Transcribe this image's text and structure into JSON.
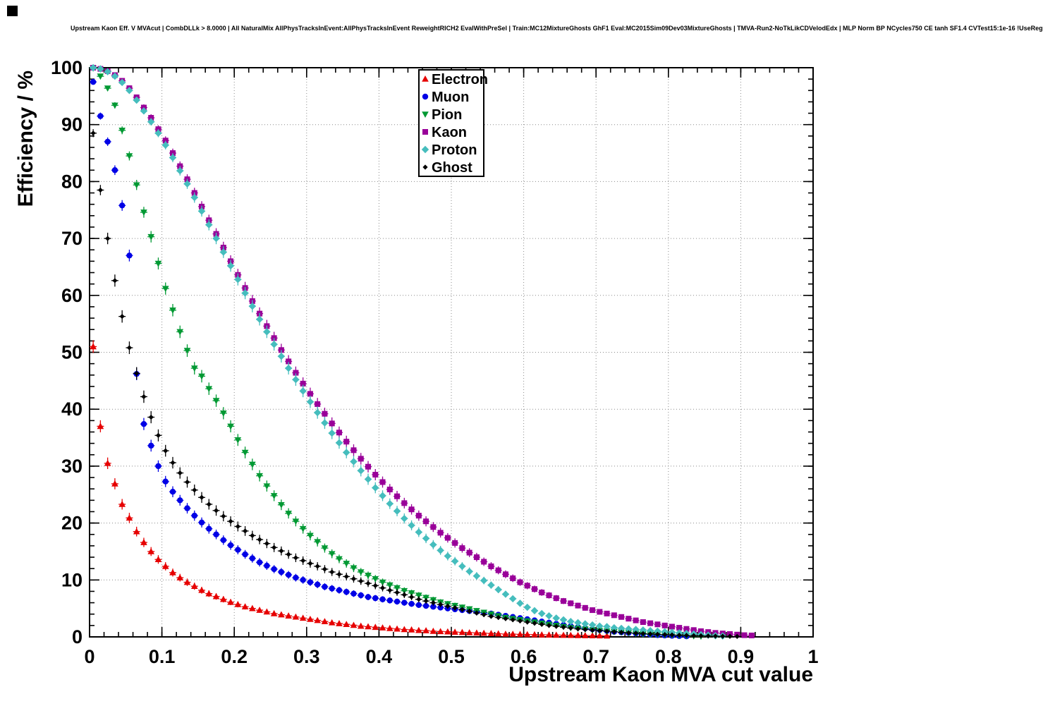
{
  "chart_data": {
    "type": "scatter",
    "title": "Upstream Kaon Eff. V MVAcut | CombDLLk > 8.0000 | All NaturalMix AllPhysTracksInEvent:AllPhysTracksInEvent ReweightRICH2 EvalWithPreSel | Train:MC12MixtureGhosts GhF1 Eval:MC2015Sim09Dev03MixtureGhosts | TMVA-Run2-NoTkLikCDVelodEdx | MLP Norm BP NCycles750 CE tanh SF1.4 CVTest15:1e-16 !UseReg",
    "xlabel": "Upstream Kaon MVA cut value",
    "ylabel": "Efficiency / %",
    "xlim": [
      0,
      1
    ],
    "ylim": [
      0,
      100
    ],
    "x_ticks": [
      0,
      0.1,
      0.2,
      0.3,
      0.4,
      0.5,
      0.6,
      0.7,
      0.8,
      0.9,
      1
    ],
    "x_tick_labels": [
      "0",
      "0.1",
      "0.2",
      "0.3",
      "0.4",
      "0.5",
      "0.6",
      "0.7",
      "0.8",
      "0.9",
      "1"
    ],
    "y_ticks": [
      0,
      10,
      20,
      30,
      40,
      50,
      60,
      70,
      80,
      90,
      100
    ],
    "y_tick_labels": [
      "0",
      "10",
      "20",
      "30",
      "40",
      "50",
      "60",
      "70",
      "80",
      "90",
      "100"
    ],
    "x_minor_step": 0.02,
    "y_minor_step": 2,
    "grid": true,
    "grid_style": "dotted",
    "legend_position": "top-center",
    "series": [
      {
        "name": "Electron",
        "color": "#e60000",
        "marker": "triangle-up",
        "x_start": 0.005,
        "x_step": 0.01,
        "y": [
          51.0,
          37.0,
          30.5,
          26.9,
          23.3,
          20.9,
          18.5,
          16.6,
          15.0,
          13.6,
          12.4,
          11.3,
          10.4,
          9.6,
          8.9,
          8.2,
          7.6,
          7.1,
          6.6,
          6.1,
          5.7,
          5.3,
          5.0,
          4.7,
          4.4,
          4.1,
          3.9,
          3.7,
          3.5,
          3.3,
          3.1,
          2.9,
          2.7,
          2.5,
          2.35,
          2.2,
          2.05,
          1.9,
          1.8,
          1.7,
          1.6,
          1.5,
          1.4,
          1.3,
          1.25,
          1.15,
          1.1,
          1.0,
          0.95,
          0.9,
          0.85,
          0.8,
          0.75,
          0.7,
          0.65,
          0.6,
          0.55,
          0.5,
          0.48,
          0.45,
          0.42,
          0.4,
          0.37,
          0.35,
          0.32,
          0.3,
          0.28,
          0.26,
          0.24,
          0.22,
          0.2,
          0.18
        ]
      },
      {
        "name": "Muon",
        "color": "#0000e6",
        "marker": "circle",
        "x_start": 0.005,
        "x_step": 0.01,
        "y": [
          97.5,
          91.5,
          87.0,
          82.0,
          75.8,
          67.0,
          46.2,
          37.4,
          33.6,
          30.0,
          27.3,
          25.5,
          24.0,
          22.6,
          21.3,
          20.1,
          19.0,
          18.0,
          17.0,
          16.1,
          15.3,
          14.5,
          13.8,
          13.1,
          12.5,
          11.9,
          11.4,
          10.9,
          10.4,
          10.0,
          9.6,
          9.2,
          8.8,
          8.5,
          8.2,
          7.9,
          7.6,
          7.3,
          7.0,
          6.8,
          6.6,
          6.4,
          6.2,
          6.0,
          5.8,
          5.6,
          5.45,
          5.3,
          5.15,
          5.0,
          4.85,
          4.7,
          4.55,
          4.4,
          4.25,
          4.1,
          3.9,
          3.7,
          3.5,
          3.3,
          3.1,
          2.9,
          2.7,
          2.5,
          2.3,
          2.1,
          1.9,
          1.7,
          1.5,
          1.35,
          1.2,
          1.05,
          0.9,
          0.8,
          0.7,
          0.6,
          0.5,
          0.4,
          0.3,
          0.25,
          0.2,
          0.15,
          0.1
        ]
      },
      {
        "name": "Pion",
        "color": "#009933",
        "marker": "triangle-down",
        "x_start": 0.005,
        "x_step": 0.01,
        "y": [
          99.9,
          98.5,
          96.4,
          93.4,
          89.0,
          84.5,
          79.4,
          74.6,
          70.3,
          65.6,
          61.2,
          57.4,
          53.6,
          50.3,
          47.2,
          45.8,
          43.6,
          41.5,
          39.3,
          37.0,
          34.6,
          32.4,
          30.3,
          28.3,
          26.5,
          24.8,
          23.2,
          21.7,
          20.3,
          19.0,
          17.8,
          16.7,
          15.6,
          14.6,
          13.7,
          12.9,
          12.1,
          11.4,
          10.8,
          10.2,
          9.6,
          9.1,
          8.6,
          8.1,
          7.7,
          7.3,
          6.9,
          6.5,
          6.1,
          5.8,
          5.5,
          5.2,
          4.9,
          4.6,
          4.3,
          4.0,
          3.7,
          3.4,
          3.2,
          3.0,
          2.8,
          2.6,
          2.4,
          2.2,
          2.0,
          1.8,
          1.6,
          1.5,
          1.35,
          1.2,
          1.1,
          1.0,
          0.9,
          0.8,
          0.7,
          0.6,
          0.5,
          0.45,
          0.4,
          0.35,
          0.3,
          0.25,
          0.2,
          0.15,
          0.1
        ]
      },
      {
        "name": "Kaon",
        "color": "#990099",
        "marker": "square",
        "x_start": 0.005,
        "x_step": 0.01,
        "y": [
          100.0,
          99.8,
          99.4,
          98.7,
          97.7,
          96.4,
          94.8,
          93.0,
          91.2,
          89.2,
          87.2,
          85.0,
          82.7,
          80.4,
          78.0,
          75.6,
          73.2,
          70.8,
          68.4,
          66.0,
          63.6,
          61.3,
          59.0,
          56.8,
          54.6,
          52.5,
          50.4,
          48.4,
          46.4,
          44.5,
          42.7,
          40.9,
          39.2,
          37.5,
          35.9,
          34.3,
          32.8,
          31.3,
          29.9,
          28.5,
          27.2,
          25.9,
          24.7,
          23.5,
          22.4,
          21.3,
          20.3,
          19.3,
          18.3,
          17.4,
          16.5,
          15.6,
          14.8,
          14.0,
          13.2,
          12.4,
          11.7,
          11.0,
          10.3,
          9.6,
          9.0,
          8.4,
          7.8,
          7.3,
          6.8,
          6.3,
          5.9,
          5.5,
          5.1,
          4.7,
          4.4,
          4.1,
          3.8,
          3.5,
          3.2,
          2.9,
          2.6,
          2.4,
          2.2,
          2.0,
          1.8,
          1.6,
          1.4,
          1.2,
          1.0,
          0.85,
          0.7,
          0.6,
          0.5,
          0.4,
          0.3,
          0.25
        ]
      },
      {
        "name": "Proton",
        "color": "#45bdbd",
        "marker": "diamond",
        "x_start": 0.005,
        "x_step": 0.01,
        "y": [
          100.0,
          99.8,
          99.3,
          98.5,
          97.4,
          96.0,
          94.3,
          92.4,
          90.5,
          88.5,
          86.4,
          84.2,
          81.9,
          79.6,
          77.2,
          74.8,
          72.4,
          70.0,
          67.6,
          65.2,
          62.8,
          60.4,
          58.1,
          55.8,
          53.6,
          51.4,
          49.3,
          47.2,
          45.2,
          43.2,
          41.3,
          39.4,
          37.6,
          35.8,
          34.1,
          32.4,
          30.8,
          29.2,
          27.7,
          26.2,
          24.8,
          23.4,
          22.1,
          20.8,
          19.6,
          18.4,
          17.3,
          16.2,
          15.2,
          14.2,
          13.3,
          12.4,
          11.5,
          10.7,
          9.9,
          9.1,
          8.3,
          7.5,
          6.7,
          5.9,
          5.2,
          4.6,
          4.1,
          3.7,
          3.3,
          3.0,
          2.7,
          2.5,
          2.3,
          2.1,
          1.9,
          1.8,
          1.6,
          1.5,
          1.4,
          1.3,
          1.2,
          1.1,
          1.0,
          0.9,
          0.8,
          0.7,
          0.6,
          0.5,
          0.4,
          0.3,
          0.2,
          0.15
        ]
      },
      {
        "name": "Ghost",
        "color": "#000000",
        "marker": "diamond-small",
        "x_start": 0.005,
        "x_step": 0.01,
        "y": [
          88.5,
          78.5,
          70.0,
          62.6,
          56.3,
          50.8,
          46.3,
          42.2,
          38.6,
          35.4,
          32.7,
          30.6,
          28.8,
          27.2,
          25.8,
          24.5,
          23.3,
          22.2,
          21.2,
          20.3,
          19.4,
          18.6,
          17.8,
          17.1,
          16.4,
          15.7,
          15.1,
          14.5,
          13.9,
          13.4,
          12.9,
          12.4,
          11.9,
          11.4,
          11.0,
          10.6,
          10.2,
          9.8,
          9.4,
          9.0,
          8.6,
          8.2,
          7.8,
          7.4,
          7.0,
          6.6,
          6.3,
          6.0,
          5.7,
          5.4,
          5.1,
          4.8,
          4.5,
          4.2,
          3.9,
          3.6,
          3.4,
          3.2,
          3.0,
          2.8,
          2.6,
          2.4,
          2.2,
          2.0,
          1.85,
          1.7,
          1.55,
          1.4,
          1.3,
          1.2,
          1.1,
          1.0,
          0.9,
          0.8,
          0.72,
          0.65,
          0.58,
          0.52,
          0.46,
          0.4,
          0.35,
          0.3,
          0.26,
          0.22,
          0.19,
          0.16,
          0.13,
          0.11,
          0.09,
          0.07
        ]
      }
    ],
    "legend": {
      "entries": [
        "Electron",
        "Muon",
        "Pion",
        "Kaon",
        "Proton",
        "Ghost"
      ]
    }
  }
}
